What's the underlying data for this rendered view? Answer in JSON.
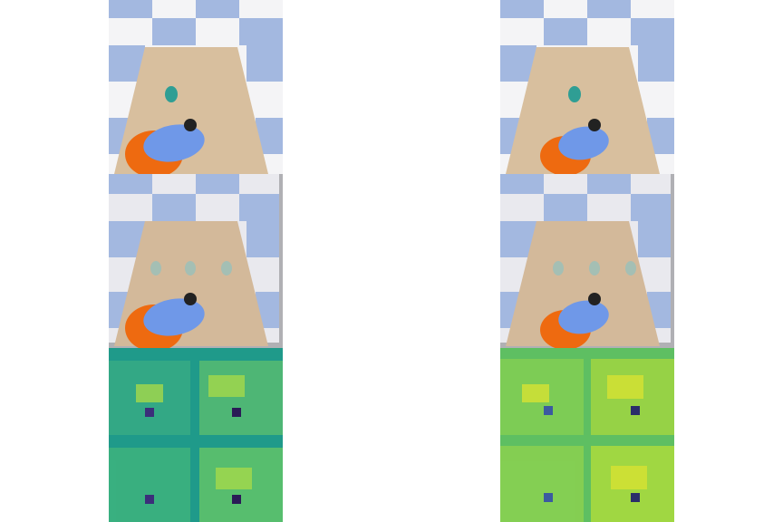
{
  "panels": [
    {
      "id": "left",
      "rows": [
        "scene-render",
        "scene-composite",
        "feature-heatmap"
      ],
      "heatmap_palette": "viridis-dark"
    },
    {
      "id": "right",
      "rows": [
        "scene-render",
        "scene-composite",
        "feature-heatmap"
      ],
      "heatmap_palette": "viridis-light"
    }
  ],
  "colors": {
    "floor_blue": "#a3b8e0",
    "floor_white": "#f4f4f6",
    "table": "#d8bf9e",
    "robot_blue": "#6f98e8",
    "robot_orange": "#ee6a10",
    "object_teal": "#2f9e94"
  }
}
